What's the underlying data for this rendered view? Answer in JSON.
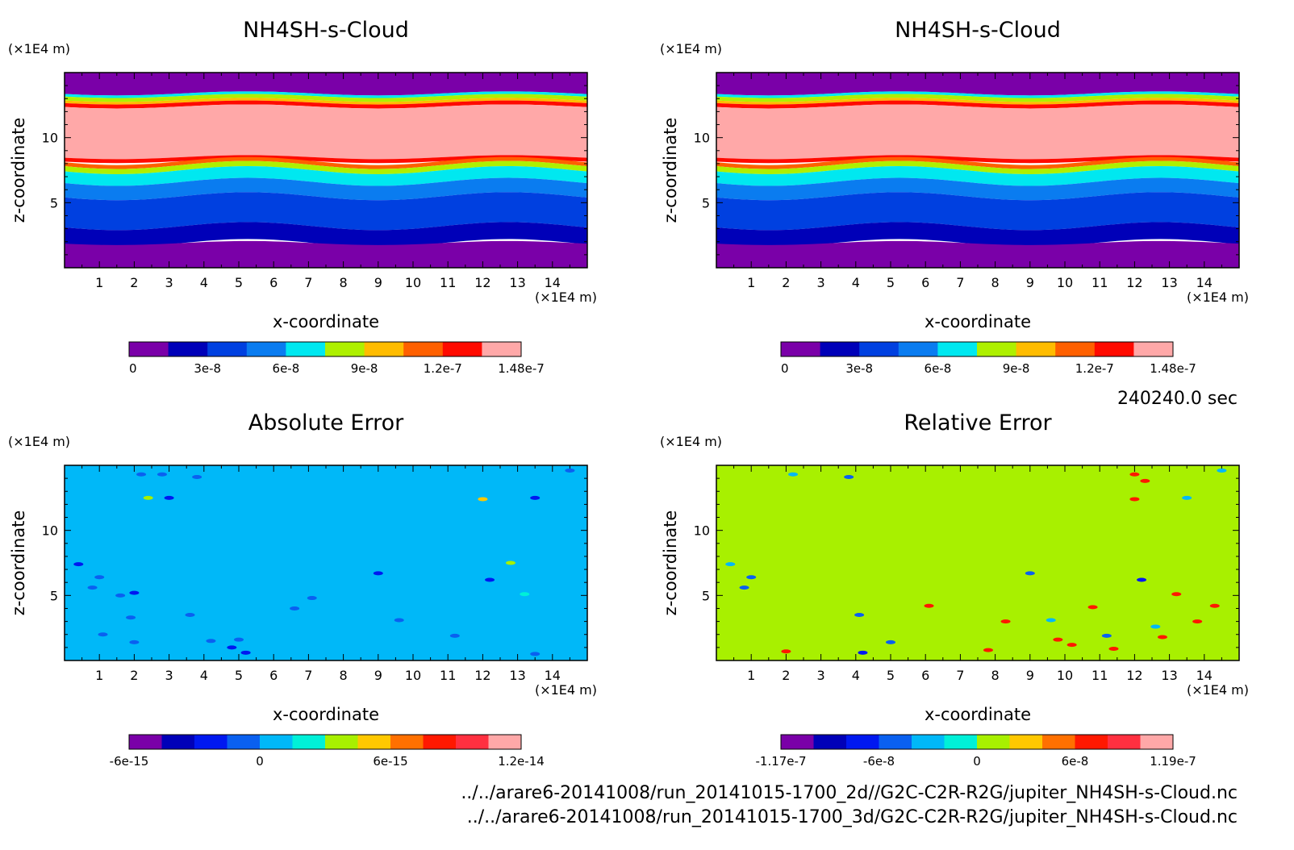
{
  "time_label": "240240.0 sec",
  "footer": {
    "line1": "../../arare6-20141008/run_20141015-1700_2d//G2C-C2R-R2G/jupiter_NH4SH-s-Cloud.nc",
    "line2": "../../arare6-20141008/run_20141015-1700_3d/G2C-C2R-R2G/jupiter_NH4SH-s-Cloud.nc"
  },
  "chart_data": [
    {
      "type": "heatmap",
      "title": "NH4SH-s-Cloud",
      "xlabel": "x-coordinate",
      "ylabel": "z-coordinate",
      "x_unit": "(×1E4 m)",
      "y_unit": "(×1E4 m)",
      "xlim": [
        0,
        15
      ],
      "ylim": [
        0,
        15
      ],
      "x_ticks": [
        1,
        2,
        3,
        4,
        5,
        6,
        7,
        8,
        9,
        10,
        11,
        12,
        13,
        14
      ],
      "y_ticks": [
        5,
        10
      ],
      "colorbar": {
        "colors": [
          "#7a00a8",
          "#0000b8",
          "#0040e0",
          "#0a7cf0",
          "#00e8f0",
          "#aef000",
          "#ffbc00",
          "#ff6000",
          "#ff0a00",
          "#ffa8a8"
        ],
        "tick_labels": [
          "0",
          "3e-8",
          "6e-8",
          "9e-8",
          "1.2e-7",
          "1.48e-7"
        ]
      },
      "bands": [
        {
          "z_top": 15.0,
          "z_bottom": 13.4,
          "color_index": 0
        },
        {
          "z_top": 13.4,
          "z_bottom": 13.2,
          "color_index": 4
        },
        {
          "z_top": 13.2,
          "z_bottom": 12.9,
          "color_index": 5
        },
        {
          "z_top": 12.9,
          "z_bottom": 12.7,
          "color_index": 6
        },
        {
          "z_top": 12.7,
          "z_bottom": 12.4,
          "color_index": 8
        },
        {
          "z_top": 12.4,
          "z_bottom": 8.5,
          "color_index": 9
        },
        {
          "z_top": 8.5,
          "z_bottom": 8.2,
          "color_index": 8
        },
        {
          "z_top": 8.2,
          "z_bottom": 7.9,
          "color_index": 7
        },
        {
          "z_top": 7.9,
          "z_bottom": 7.5,
          "color_index": 5
        },
        {
          "z_top": 7.5,
          "z_bottom": 6.6,
          "color_index": 4
        },
        {
          "z_top": 6.6,
          "z_bottom": 5.5,
          "color_index": 3
        },
        {
          "z_top": 5.5,
          "z_bottom": 3.2,
          "color_index": 2
        },
        {
          "z_top": 3.2,
          "z_bottom": 1.9,
          "color_index": 1
        },
        {
          "z_top": 1.9,
          "z_bottom": 0.0,
          "color_index": 0
        }
      ]
    },
    {
      "type": "heatmap",
      "title": "NH4SH-s-Cloud",
      "xlabel": "x-coordinate",
      "ylabel": "z-coordinate",
      "x_unit": "(×1E4 m)",
      "y_unit": "(×1E4 m)",
      "xlim": [
        0,
        15
      ],
      "ylim": [
        0,
        15
      ],
      "x_ticks": [
        1,
        2,
        3,
        4,
        5,
        6,
        7,
        8,
        9,
        10,
        11,
        12,
        13,
        14
      ],
      "y_ticks": [
        5,
        10
      ],
      "colorbar": {
        "colors": [
          "#7a00a8",
          "#0000b8",
          "#0040e0",
          "#0a7cf0",
          "#00e8f0",
          "#aef000",
          "#ffbc00",
          "#ff6000",
          "#ff0a00",
          "#ffa8a8"
        ],
        "tick_labels": [
          "0",
          "3e-8",
          "6e-8",
          "9e-8",
          "1.2e-7",
          "1.48e-7"
        ]
      },
      "bands": [
        {
          "z_top": 15.0,
          "z_bottom": 13.4,
          "color_index": 0
        },
        {
          "z_top": 13.4,
          "z_bottom": 13.2,
          "color_index": 4
        },
        {
          "z_top": 13.2,
          "z_bottom": 12.9,
          "color_index": 5
        },
        {
          "z_top": 12.9,
          "z_bottom": 12.7,
          "color_index": 6
        },
        {
          "z_top": 12.7,
          "z_bottom": 12.4,
          "color_index": 8
        },
        {
          "z_top": 12.4,
          "z_bottom": 8.5,
          "color_index": 9
        },
        {
          "z_top": 8.5,
          "z_bottom": 8.2,
          "color_index": 8
        },
        {
          "z_top": 8.2,
          "z_bottom": 7.9,
          "color_index": 7
        },
        {
          "z_top": 7.9,
          "z_bottom": 7.5,
          "color_index": 5
        },
        {
          "z_top": 7.5,
          "z_bottom": 6.6,
          "color_index": 4
        },
        {
          "z_top": 6.6,
          "z_bottom": 5.5,
          "color_index": 3
        },
        {
          "z_top": 5.5,
          "z_bottom": 3.2,
          "color_index": 2
        },
        {
          "z_top": 3.2,
          "z_bottom": 1.9,
          "color_index": 1
        },
        {
          "z_top": 1.9,
          "z_bottom": 0.0,
          "color_index": 0
        }
      ]
    },
    {
      "type": "heatmap",
      "title": "Absolute Error",
      "xlabel": "x-coordinate",
      "ylabel": "z-coordinate",
      "x_unit": "(×1E4 m)",
      "y_unit": "(×1E4 m)",
      "xlim": [
        0,
        15
      ],
      "ylim": [
        0,
        15
      ],
      "x_ticks": [
        1,
        2,
        3,
        4,
        5,
        6,
        7,
        8,
        9,
        10,
        11,
        12,
        13,
        14
      ],
      "y_ticks": [
        5,
        10
      ],
      "background_color_index": 4,
      "colorbar": {
        "colors": [
          "#7a00a8",
          "#0000b8",
          "#0018f0",
          "#0a60f0",
          "#00b8f8",
          "#00f0d8",
          "#a8f000",
          "#ffc800",
          "#ff7000",
          "#ff1800",
          "#ff3040",
          "#ffa8a8"
        ],
        "tick_labels": [
          "-6e-15",
          "0",
          "6e-15",
          "1.2e-14"
        ]
      },
      "spots": [
        {
          "x": 2.2,
          "z": 14.3,
          "c": 3
        },
        {
          "x": 2.8,
          "z": 14.3,
          "c": 3
        },
        {
          "x": 3.8,
          "z": 14.1,
          "c": 3
        },
        {
          "x": 2.4,
          "z": 12.5,
          "c": 6
        },
        {
          "x": 3.0,
          "z": 12.5,
          "c": 2
        },
        {
          "x": 12.0,
          "z": 12.4,
          "c": 7
        },
        {
          "x": 13.5,
          "z": 12.5,
          "c": 2
        },
        {
          "x": 14.5,
          "z": 14.6,
          "c": 3
        },
        {
          "x": 0.4,
          "z": 7.4,
          "c": 2
        },
        {
          "x": 1.0,
          "z": 6.4,
          "c": 3
        },
        {
          "x": 0.8,
          "z": 5.6,
          "c": 3
        },
        {
          "x": 1.6,
          "z": 5.0,
          "c": 3
        },
        {
          "x": 2.0,
          "z": 5.2,
          "c": 2
        },
        {
          "x": 9.0,
          "z": 6.7,
          "c": 2
        },
        {
          "x": 12.2,
          "z": 6.2,
          "c": 2
        },
        {
          "x": 12.8,
          "z": 7.5,
          "c": 6
        },
        {
          "x": 13.2,
          "z": 5.1,
          "c": 5
        },
        {
          "x": 7.1,
          "z": 4.8,
          "c": 3
        },
        {
          "x": 3.6,
          "z": 3.5,
          "c": 3
        },
        {
          "x": 1.9,
          "z": 3.3,
          "c": 3
        },
        {
          "x": 1.1,
          "z": 2.0,
          "c": 3
        },
        {
          "x": 2.0,
          "z": 1.4,
          "c": 3
        },
        {
          "x": 4.2,
          "z": 1.5,
          "c": 3
        },
        {
          "x": 4.8,
          "z": 1.0,
          "c": 2
        },
        {
          "x": 5.2,
          "z": 0.6,
          "c": 2
        },
        {
          "x": 9.6,
          "z": 3.1,
          "c": 3
        },
        {
          "x": 11.2,
          "z": 1.9,
          "c": 3
        },
        {
          "x": 13.5,
          "z": 0.5,
          "c": 3
        },
        {
          "x": 5.0,
          "z": 1.6,
          "c": 3
        },
        {
          "x": 6.6,
          "z": 4.0,
          "c": 3
        }
      ]
    },
    {
      "type": "heatmap",
      "title": "Relative Error",
      "xlabel": "x-coordinate",
      "ylabel": "z-coordinate",
      "x_unit": "(×1E4 m)",
      "y_unit": "(×1E4 m)",
      "xlim": [
        0,
        15
      ],
      "ylim": [
        0,
        15
      ],
      "x_ticks": [
        1,
        2,
        3,
        4,
        5,
        6,
        7,
        8,
        9,
        10,
        11,
        12,
        13,
        14
      ],
      "y_ticks": [
        5,
        10
      ],
      "background_color_index": 6,
      "colorbar": {
        "colors": [
          "#7a00a8",
          "#0000b8",
          "#0018f0",
          "#0a60f0",
          "#00b8f8",
          "#00f0d8",
          "#a8f000",
          "#ffc800",
          "#ff7000",
          "#ff1800",
          "#ff3040",
          "#ffa8a8"
        ],
        "tick_labels": [
          "-1.17e-7",
          "-6e-8",
          "0",
          "6e-8",
          "1.19e-7"
        ]
      },
      "spots": [
        {
          "x": 2.2,
          "z": 14.3,
          "c": 4
        },
        {
          "x": 3.8,
          "z": 14.1,
          "c": 3
        },
        {
          "x": 12.0,
          "z": 14.3,
          "c": 9
        },
        {
          "x": 12.3,
          "z": 13.8,
          "c": 9
        },
        {
          "x": 12.0,
          "z": 12.4,
          "c": 9
        },
        {
          "x": 13.5,
          "z": 12.5,
          "c": 4
        },
        {
          "x": 14.5,
          "z": 14.6,
          "c": 4
        },
        {
          "x": 0.4,
          "z": 7.4,
          "c": 4
        },
        {
          "x": 1.0,
          "z": 6.4,
          "c": 3
        },
        {
          "x": 0.8,
          "z": 5.6,
          "c": 3
        },
        {
          "x": 9.0,
          "z": 6.7,
          "c": 3
        },
        {
          "x": 12.2,
          "z": 6.2,
          "c": 2
        },
        {
          "x": 13.2,
          "z": 5.1,
          "c": 9
        },
        {
          "x": 4.1,
          "z": 3.5,
          "c": 3
        },
        {
          "x": 9.6,
          "z": 3.1,
          "c": 4
        },
        {
          "x": 11.2,
          "z": 1.9,
          "c": 3
        },
        {
          "x": 5.0,
          "z": 1.4,
          "c": 3
        },
        {
          "x": 4.2,
          "z": 0.6,
          "c": 2
        },
        {
          "x": 10.2,
          "z": 1.2,
          "c": 9
        },
        {
          "x": 11.4,
          "z": 0.9,
          "c": 9
        },
        {
          "x": 12.8,
          "z": 1.8,
          "c": 9
        },
        {
          "x": 13.8,
          "z": 3.0,
          "c": 9
        },
        {
          "x": 14.3,
          "z": 4.2,
          "c": 9
        },
        {
          "x": 2.0,
          "z": 0.7,
          "c": 9
        },
        {
          "x": 8.3,
          "z": 3.0,
          "c": 9
        },
        {
          "x": 10.8,
          "z": 4.1,
          "c": 9
        },
        {
          "x": 7.8,
          "z": 0.8,
          "c": 9
        },
        {
          "x": 12.6,
          "z": 2.6,
          "c": 4
        },
        {
          "x": 6.1,
          "z": 4.2,
          "c": 9
        },
        {
          "x": 9.8,
          "z": 1.6,
          "c": 9
        }
      ]
    }
  ]
}
